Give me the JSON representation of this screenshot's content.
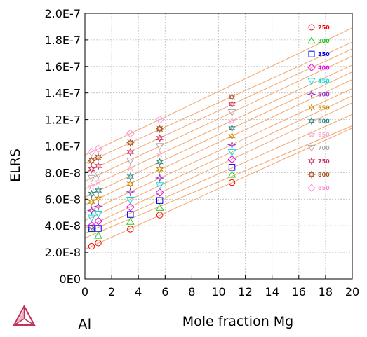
{
  "chart_data": {
    "type": "scatter",
    "xlabel": "Mole fraction Mg",
    "ylabel": "ELRS",
    "xlim": [
      0,
      20
    ],
    "ylim": [
      0,
      2e-07
    ],
    "x_ticks": [
      "0",
      "2",
      "4",
      "6",
      "8",
      "10",
      "12",
      "14",
      "16",
      "18",
      "20"
    ],
    "y_ticks": [
      "0E0",
      "2.0E-8",
      "4.0E-8",
      "6.0E-8",
      "8.0E-8",
      "1.0E-7",
      "1.2E-7",
      "1.4E-7",
      "1.6E-7",
      "1.8E-7",
      "2.0E-7"
    ],
    "grid": true,
    "legend_position": "top-right",
    "fit_line_color": "#f4a46a",
    "x": [
      0.5,
      1.0,
      3.4,
      5.6,
      11.0
    ],
    "series": [
      {
        "name": "250",
        "color": "#ff0000",
        "marker": "circle",
        "values": [
          2.45e-08,
          2.7e-08,
          3.75e-08,
          4.8e-08,
          7.25e-08
        ]
      },
      {
        "name": "300",
        "color": "#22cc22",
        "marker": "triangle",
        "values": [
          3.75e-08,
          3.25e-08,
          4.3e-08,
          5.35e-08,
          7.85e-08
        ]
      },
      {
        "name": "350",
        "color": "#0000ee",
        "marker": "square",
        "values": [
          3.8e-08,
          3.8e-08,
          4.85e-08,
          5.9e-08,
          8.4e-08
        ]
      },
      {
        "name": "400",
        "color": "#ee00ee",
        "marker": "diamond",
        "values": [
          4e-08,
          4.35e-08,
          5.4e-08,
          6.5e-08,
          9e-08
        ]
      },
      {
        "name": "450",
        "color": "#00dddd",
        "marker": "triangle-down",
        "values": [
          4.6e-08,
          4.9e-08,
          5.95e-08,
          7.05e-08,
          9.55e-08
        ]
      },
      {
        "name": "500",
        "color": "#9933cc",
        "marker": "star4",
        "values": [
          5.15e-08,
          5.45e-08,
          6.55e-08,
          7.6e-08,
          1.01e-07
        ]
      },
      {
        "name": "550",
        "color": "#cc8800",
        "marker": "star6",
        "values": [
          5.8e-08,
          6.05e-08,
          7.15e-08,
          8.25e-08,
          1.075e-07
        ]
      },
      {
        "name": "600",
        "color": "#228888",
        "marker": "star6",
        "values": [
          6.4e-08,
          6.65e-08,
          7.7e-08,
          8.8e-08,
          1.135e-07
        ]
      },
      {
        "name": "650",
        "color": "#ffaacc",
        "marker": "star5",
        "values": [
          6.95e-08,
          7.3e-08,
          8.35e-08,
          9.4e-08,
          1.19e-07
        ]
      },
      {
        "name": "700",
        "color": "#aaaaaa",
        "marker": "triangle-down",
        "values": [
          7.6e-08,
          7.85e-08,
          8.9e-08,
          1e-07,
          1.255e-07
        ]
      },
      {
        "name": "750",
        "color": "#cc3366",
        "marker": "star6",
        "values": [
          8.25e-08,
          8.5e-08,
          9.55e-08,
          1.06e-07,
          1.315e-07
        ]
      },
      {
        "name": "800",
        "color": "#aa5522",
        "marker": "star4sq",
        "values": [
          8.9e-08,
          9.15e-08,
          1.025e-07,
          1.13e-07,
          1.37e-07
        ]
      },
      {
        "name": "850",
        "color": "#ff88dd",
        "marker": "diamond",
        "values": [
          9.55e-08,
          9.8e-08,
          1.095e-07,
          1.2e-07,
          null
        ]
      }
    ]
  },
  "element_label": "Al",
  "logo": {
    "name": "thermo-calc-logo",
    "color": "#c0335a"
  }
}
